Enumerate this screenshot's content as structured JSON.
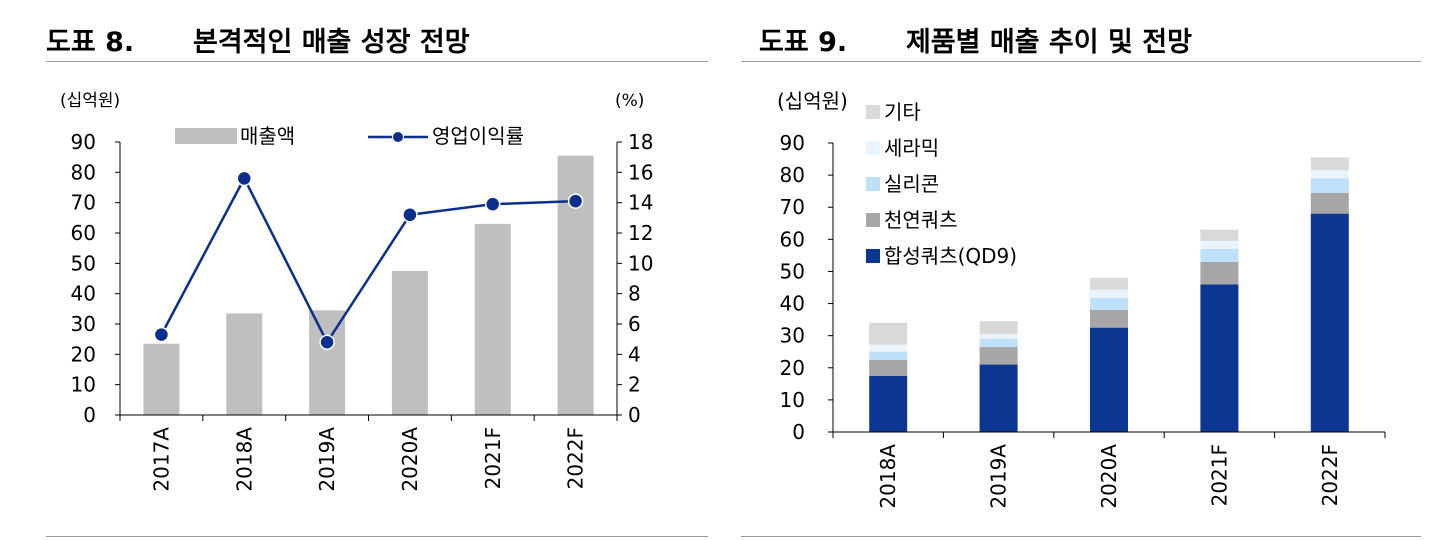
{
  "panels": [
    {
      "label": "도표 8.",
      "title": "본격적인 매출 성장 전망"
    },
    {
      "label": "도표 9.",
      "title": "제품별 매출 추이 및 전망"
    }
  ],
  "colors": {
    "bar_gray": "#bfbfbf",
    "line_navy": "#0b2f8c",
    "hapseong": "#0b3691",
    "cheonyeon": "#a6a6a6",
    "silicon": "#bfe0fa",
    "ceramic": "#eaf4fd",
    "other": "#d9d9d9"
  },
  "chart_data": [
    {
      "type": "bar",
      "categories": [
        "2017A",
        "2018A",
        "2019A",
        "2020A",
        "2021F",
        "2022F"
      ],
      "series": [
        {
          "name": "매출액",
          "type": "bar",
          "axis": "left",
          "values": [
            23.5,
            33.5,
            34.5,
            47.5,
            63,
            85.5
          ]
        },
        {
          "name": "영업이익률",
          "type": "line",
          "axis": "right",
          "values": [
            5.3,
            15.6,
            4.8,
            13.2,
            13.9,
            14.1
          ]
        }
      ],
      "ylabel": "(십억원)",
      "y2label": "(%)",
      "ylim": [
        0,
        90
      ],
      "y2lim": [
        0,
        18
      ],
      "yticks": [
        "0",
        "10",
        "20",
        "30",
        "40",
        "50",
        "60",
        "70",
        "80",
        "90"
      ],
      "y2ticks": [
        "0",
        "2",
        "4",
        "6",
        "8",
        "10",
        "12",
        "14",
        "16",
        "18"
      ],
      "legend": "top"
    },
    {
      "type": "bar",
      "stacked": true,
      "categories": [
        "2018A",
        "2019A",
        "2020A",
        "2021F",
        "2022F"
      ],
      "series": [
        {
          "name": "합성쿼츠(QD9)",
          "values": [
            17.5,
            21,
            32.5,
            46,
            68
          ]
        },
        {
          "name": "천연쿼츠",
          "values": [
            5,
            5.5,
            5.5,
            7,
            6.5
          ]
        },
        {
          "name": "실리콘",
          "values": [
            2.5,
            2.5,
            3.8,
            4,
            4.5
          ]
        },
        {
          "name": "세라믹",
          "values": [
            2.2,
            1.5,
            2.5,
            2.5,
            2.5
          ]
        },
        {
          "name": "기타",
          "values": [
            6.8,
            4,
            3.7,
            3.5,
            4
          ]
        }
      ],
      "ylabel": "(십억원)",
      "ylim": [
        0,
        90
      ],
      "yticks": [
        "0",
        "10",
        "20",
        "30",
        "40",
        "50",
        "60",
        "70",
        "80",
        "90"
      ],
      "legend": "left"
    }
  ]
}
